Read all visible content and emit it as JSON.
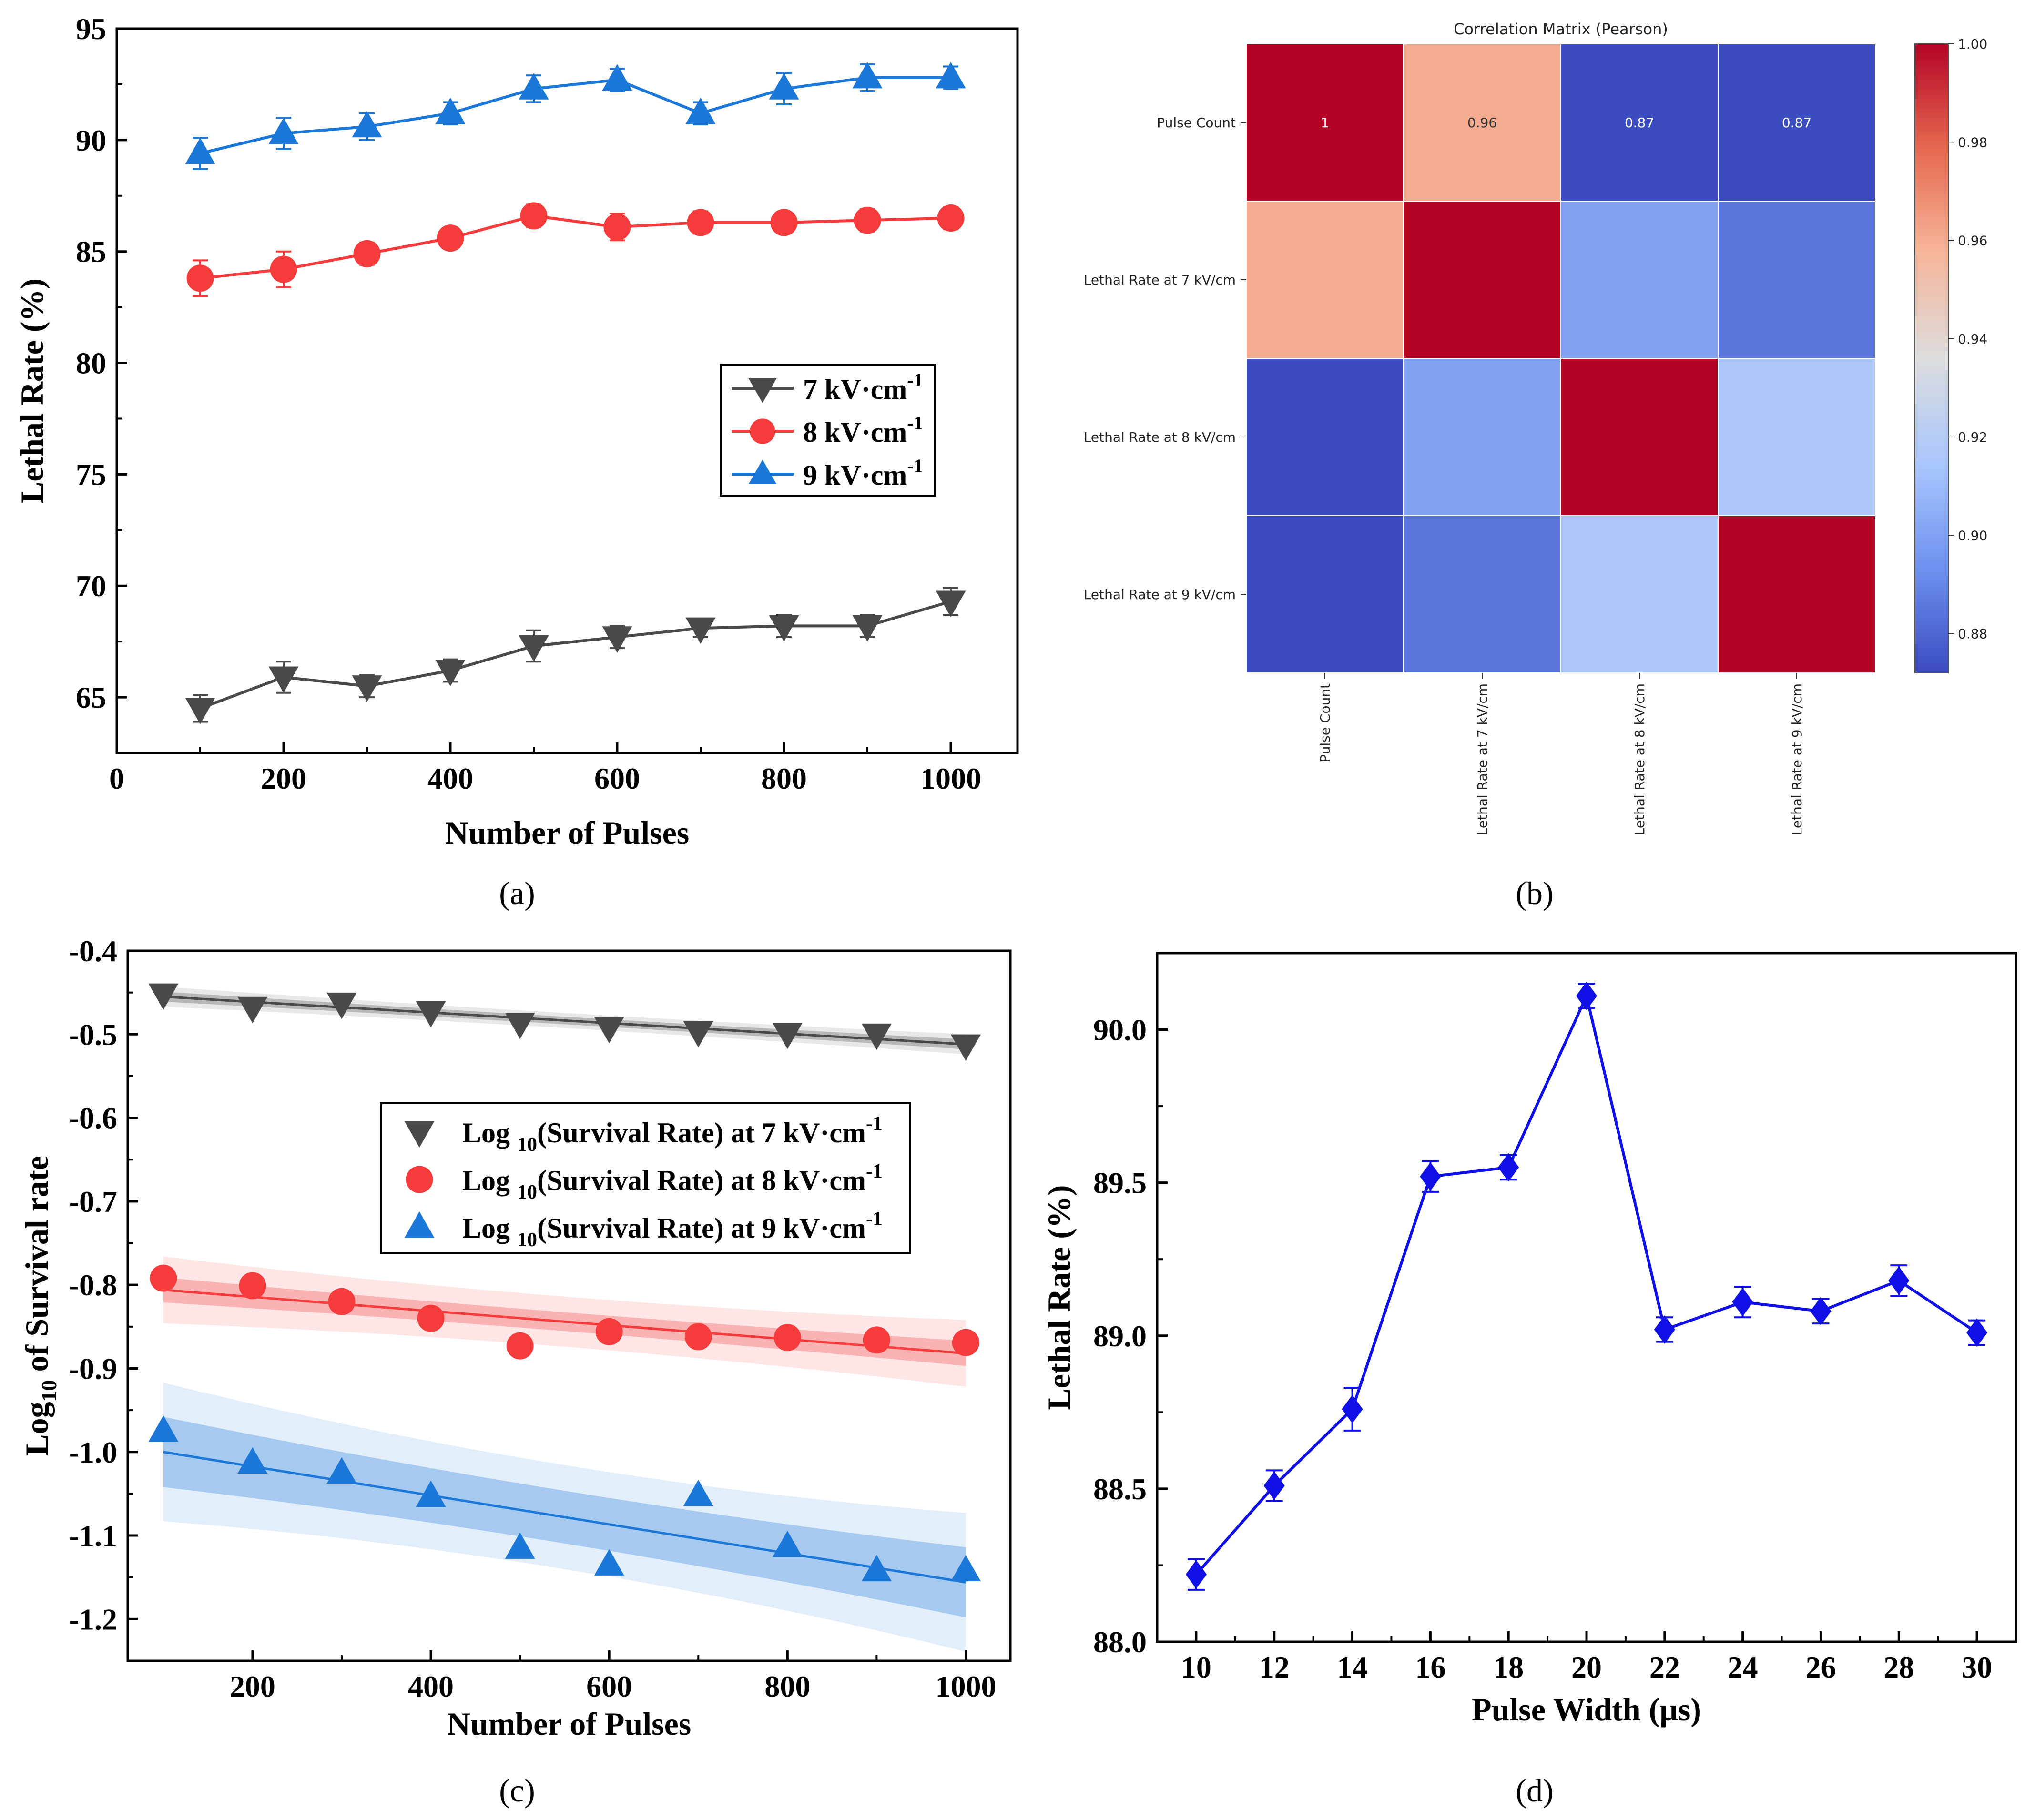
{
  "panel_labels": [
    "(a)",
    "(b)",
    "(c)",
    "(d)"
  ],
  "colors": {
    "gray": "#4a4a4a",
    "red": "#f53b3b",
    "blue": "#1c78d8",
    "blue_d": "#1010e6",
    "cmap": [
      "#3b4cc0",
      "#6e91ef",
      "#aac7fd",
      "#dcdddd",
      "#f6b69a",
      "#e6694f",
      "#b40426"
    ]
  },
  "chart_data": [
    {
      "id": "a",
      "type": "line",
      "title": "",
      "xlabel": "Number of Pulses",
      "ylabel": "Lethal Rate (%)",
      "xlim": [
        0,
        1080
      ],
      "ylim": [
        62.5,
        95
      ],
      "xticks": [
        0,
        200,
        400,
        600,
        800,
        1000
      ],
      "yticks": [
        65,
        70,
        75,
        80,
        85,
        90,
        95
      ],
      "x": [
        100,
        200,
        300,
        400,
        500,
        600,
        700,
        800,
        900,
        1000
      ],
      "legend": {
        "position": "center-right"
      },
      "series": [
        {
          "name": "7 kV·cm",
          "sup": "-1",
          "marker": "tri-down",
          "color": "gray",
          "values": [
            64.5,
            65.9,
            65.5,
            66.2,
            67.3,
            67.7,
            68.1,
            68.2,
            68.2,
            69.3
          ],
          "errors": [
            0.6,
            0.7,
            0.5,
            0.5,
            0.7,
            0.5,
            0.4,
            0.5,
            0.5,
            0.6
          ]
        },
        {
          "name": "8 kV·cm",
          "sup": "-1",
          "marker": "circle",
          "color": "red",
          "values": [
            83.8,
            84.2,
            84.9,
            85.6,
            86.6,
            86.1,
            86.3,
            86.3,
            86.4,
            86.5
          ],
          "errors": [
            0.8,
            0.8,
            0.5,
            0.4,
            0.5,
            0.6,
            0.5,
            0.4,
            0.5,
            0.5
          ]
        },
        {
          "name": "9 kV·cm",
          "sup": "-1",
          "marker": "tri-up",
          "color": "blue",
          "values": [
            89.4,
            90.3,
            90.6,
            91.2,
            92.3,
            92.7,
            91.2,
            92.3,
            92.8,
            92.8
          ],
          "errors": [
            0.7,
            0.7,
            0.6,
            0.5,
            0.6,
            0.5,
            0.5,
            0.7,
            0.6,
            0.5
          ]
        }
      ]
    },
    {
      "id": "b",
      "type": "heatmap",
      "title": "Correlation Matrix (Pearson)",
      "labels": [
        "Pulse Count",
        "Lethal Rate at 7 kV/cm",
        "Lethal Rate at 8 kV/cm",
        "Lethal Rate at 9 kV/cm"
      ],
      "matrix": [
        [
          1.0,
          0.96,
          0.87,
          0.87
        ],
        [
          0.96,
          1.0,
          0.9,
          0.885
        ],
        [
          0.87,
          0.9,
          1.0,
          0.915
        ],
        [
          0.87,
          0.885,
          0.915,
          1.0
        ]
      ],
      "annotations": [
        [
          0,
          0,
          "1"
        ],
        [
          0,
          1,
          "0.96"
        ],
        [
          0,
          2,
          "0.87"
        ],
        [
          0,
          3,
          "0.87"
        ]
      ],
      "colorbar": {
        "min": 0.872,
        "max": 1.0,
        "ticks": [
          "0.88",
          "0.90",
          "0.92",
          "0.94",
          "0.96",
          "0.98",
          "1.00"
        ]
      }
    },
    {
      "id": "c",
      "type": "scatter",
      "title": "",
      "xlabel": "Number of Pulses",
      "ylabel_prefix": "Log",
      "ylabel_sub": "10",
      "ylabel_suffix": " of Survival rate",
      "xlim": [
        60,
        1050
      ],
      "ylim": [
        -1.25,
        -0.4
      ],
      "xticks": [
        200,
        400,
        600,
        800,
        1000
      ],
      "yticks": [
        "-0.4",
        "-0.5",
        "-0.6",
        "-0.7",
        "-0.8",
        "-0.9",
        "-1.0",
        "-1.1",
        "-1.2"
      ],
      "x": [
        100,
        200,
        300,
        400,
        500,
        600,
        700,
        800,
        900,
        1000
      ],
      "legend": {
        "position": "upper-center"
      },
      "series": [
        {
          "name_pre": "Log ",
          "name_sub": "10",
          "name_post": "(Survival Rate) at 7 kV·cm",
          "sup": "-1",
          "marker": "tri-down",
          "color": "gray",
          "values": [
            -0.452,
            -0.468,
            -0.463,
            -0.473,
            -0.487,
            -0.492,
            -0.497,
            -0.499,
            -0.5,
            -0.513
          ],
          "fit": [
            -0.455,
            -0.512
          ],
          "band_conf": 0.006,
          "band_pred": 0.012
        },
        {
          "name_pre": "Log ",
          "name_sub": "10",
          "name_post": "(Survival Rate) at 8 kV·cm",
          "sup": "-1",
          "marker": "circle",
          "color": "red",
          "values": [
            -0.792,
            -0.801,
            -0.82,
            -0.84,
            -0.873,
            -0.856,
            -0.862,
            -0.863,
            -0.866,
            -0.869
          ],
          "fit": [
            -0.806,
            -0.882
          ],
          "band_conf": 0.015,
          "band_pred": 0.04
        },
        {
          "name_pre": "Log ",
          "name_sub": "10",
          "name_post": "(Survival Rate) at 9 kV·cm",
          "sup": "-1",
          "marker": "tri-up",
          "color": "blue",
          "values": [
            -0.975,
            -1.013,
            -1.025,
            -1.053,
            -1.115,
            -1.135,
            -1.052,
            -1.113,
            -1.142,
            -1.142
          ],
          "fit": [
            -1.0,
            -1.156
          ],
          "band_conf": 0.042,
          "band_pred": 0.083
        }
      ]
    },
    {
      "id": "d",
      "type": "line",
      "title": "",
      "xlabel": "Pulse Width (μs)",
      "ylabel": "Lethal Rate (%)",
      "xlim": [
        9,
        31
      ],
      "ylim": [
        88.0,
        90.25
      ],
      "xticks": [
        10,
        12,
        14,
        16,
        18,
        20,
        22,
        24,
        26,
        28,
        30
      ],
      "yticks": [
        "88.0",
        "88.5",
        "89.0",
        "89.5",
        "90.0"
      ],
      "series": [
        {
          "name": "Lethal Rate",
          "marker": "diamond",
          "color": "blue_d",
          "x": [
            10,
            12,
            14,
            16,
            18,
            20,
            22,
            24,
            26,
            28,
            30
          ],
          "values": [
            88.22,
            88.51,
            88.76,
            89.52,
            89.55,
            90.11,
            89.02,
            89.11,
            89.08,
            89.18,
            89.01
          ],
          "errors": [
            0.05,
            0.05,
            0.07,
            0.05,
            0.04,
            0.04,
            0.04,
            0.05,
            0.04,
            0.05,
            0.04
          ]
        }
      ]
    }
  ]
}
